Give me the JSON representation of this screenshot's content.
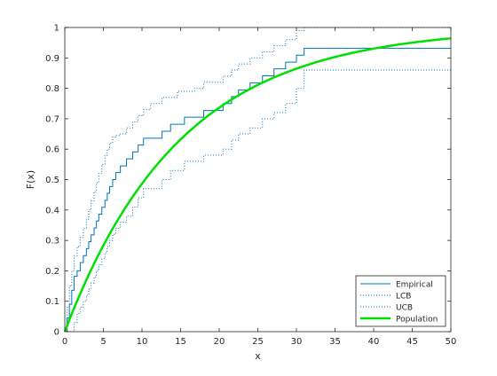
{
  "chart_data": {
    "type": "line",
    "xlabel": "x",
    "ylabel": "F(x)",
    "xlim": [
      0,
      50
    ],
    "ylim": [
      0,
      1
    ],
    "xticks": [
      0,
      5,
      10,
      15,
      20,
      25,
      30,
      35,
      40,
      45,
      50
    ],
    "yticks": [
      0,
      0.1,
      0.2,
      0.3,
      0.4,
      0.5,
      0.6,
      0.7,
      0.8,
      0.9,
      1
    ],
    "grid": false,
    "legend_position": "bottom-right",
    "series": [
      {
        "name": "Empirical",
        "style": "step-solid",
        "color": "#0072bd",
        "x": [
          0,
          0.3,
          0.6,
          0.9,
          1.2,
          1.6,
          2.0,
          2.4,
          2.8,
          3.1,
          3.4,
          3.8,
          4.1,
          4.4,
          4.8,
          5.2,
          5.5,
          5.8,
          6.2,
          6.6,
          7.2,
          8.0,
          8.8,
          9.5,
          10.2,
          11.1,
          12.6,
          13.7,
          14.6,
          15.5,
          16.8,
          18.0,
          20.5,
          21.6,
          22.5,
          24.0,
          25.6,
          27.1,
          28.6,
          30.0,
          31.0,
          50
        ],
        "y": [
          0,
          0.045,
          0.09,
          0.136,
          0.182,
          0.2,
          0.227,
          0.25,
          0.273,
          0.296,
          0.318,
          0.341,
          0.364,
          0.386,
          0.409,
          0.432,
          0.455,
          0.477,
          0.5,
          0.523,
          0.545,
          0.568,
          0.591,
          0.614,
          0.636,
          0.636,
          0.659,
          0.682,
          0.682,
          0.705,
          0.705,
          0.727,
          0.75,
          0.773,
          0.795,
          0.818,
          0.841,
          0.864,
          0.886,
          0.909,
          0.932,
          0.932
        ]
      },
      {
        "name": "LCB",
        "style": "step-dotted",
        "color": "#0072bd",
        "x": [
          0,
          0.6,
          1.2,
          1.6,
          2.0,
          2.4,
          2.8,
          3.1,
          3.4,
          3.8,
          4.1,
          4.4,
          4.8,
          5.2,
          5.5,
          5.8,
          6.2,
          6.6,
          7.2,
          8.0,
          8.8,
          9.5,
          10.2,
          12.6,
          13.7,
          15.5,
          18.0,
          20.5,
          21.6,
          22.5,
          24.0,
          25.6,
          27.1,
          28.6,
          30.0,
          31.0,
          50
        ],
        "y": [
          0,
          0.0,
          0.03,
          0.06,
          0.08,
          0.1,
          0.12,
          0.14,
          0.16,
          0.18,
          0.2,
          0.22,
          0.24,
          0.26,
          0.28,
          0.3,
          0.32,
          0.34,
          0.36,
          0.38,
          0.41,
          0.44,
          0.47,
          0.5,
          0.53,
          0.56,
          0.58,
          0.6,
          0.63,
          0.65,
          0.67,
          0.7,
          0.72,
          0.75,
          0.8,
          0.86,
          0.86
        ]
      },
      {
        "name": "UCB",
        "style": "step-dotted",
        "color": "#0072bd",
        "x": [
          0,
          0.3,
          0.6,
          0.9,
          1.2,
          1.6,
          2.0,
          2.4,
          2.8,
          3.1,
          3.4,
          3.8,
          4.1,
          4.4,
          4.8,
          5.2,
          5.5,
          5.8,
          6.2,
          6.6,
          7.2,
          8.0,
          8.8,
          9.5,
          10.2,
          11.1,
          12.6,
          14.6,
          16.8,
          18.0,
          20.5,
          21.6,
          22.5,
          24.0,
          25.6,
          27.1,
          28.6,
          30.0,
          31.0,
          50
        ],
        "y": [
          0,
          0.08,
          0.15,
          0.2,
          0.25,
          0.28,
          0.31,
          0.34,
          0.37,
          0.4,
          0.43,
          0.46,
          0.49,
          0.52,
          0.55,
          0.58,
          0.6,
          0.62,
          0.64,
          0.645,
          0.65,
          0.67,
          0.69,
          0.71,
          0.73,
          0.75,
          0.77,
          0.79,
          0.8,
          0.82,
          0.84,
          0.86,
          0.88,
          0.9,
          0.92,
          0.94,
          0.96,
          0.99,
          1.0,
          1.0
        ]
      },
      {
        "name": "Population",
        "style": "smooth-thick",
        "color": "#00e000",
        "function": "1 - exp(-x/15)",
        "x": [
          0,
          2.5,
          5,
          7.5,
          10,
          12.5,
          15,
          17.5,
          20,
          22.5,
          25,
          27.5,
          30,
          32.5,
          35,
          37.5,
          40,
          42.5,
          45,
          47.5,
          50
        ],
        "y": [
          0,
          0.154,
          0.283,
          0.393,
          0.487,
          0.565,
          0.632,
          0.689,
          0.736,
          0.777,
          0.811,
          0.84,
          0.865,
          0.885,
          0.903,
          0.918,
          0.931,
          0.941,
          0.95,
          0.958,
          0.964
        ]
      }
    ]
  }
}
